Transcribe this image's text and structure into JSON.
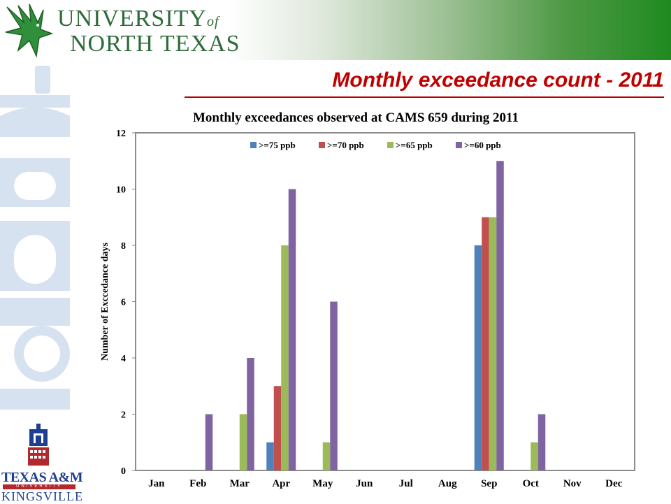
{
  "header": {
    "logo_text_line1": "UNIVERSITY",
    "logo_text_of": "of",
    "logo_text_line2": "NORTH TEXAS",
    "icon": "eagle-icon"
  },
  "slide": {
    "title": "Monthly exceedance count - 2011"
  },
  "chart_data": {
    "type": "bar",
    "title": "Monthly exceedances observed at CAMS 659 during 2011",
    "ylabel": "Number of Exccedance days",
    "xlabel": "",
    "categories": [
      "Jan",
      "Feb",
      "Mar",
      "Apr",
      "May",
      "Jun",
      "Jul",
      "Aug",
      "Sep",
      "Oct",
      "Nov",
      "Dec"
    ],
    "ylim": [
      0,
      12
    ],
    "yticks": [
      0,
      2,
      4,
      6,
      8,
      10,
      12
    ],
    "legend_position": "top-center",
    "grid": false,
    "series": [
      {
        "name": ">=75 ppb",
        "color": "#4f81bd",
        "values": [
          0,
          0,
          0,
          1,
          0,
          0,
          0,
          0,
          8,
          0,
          0,
          0
        ]
      },
      {
        "name": ">=70 ppb",
        "color": "#c0504d",
        "values": [
          0,
          0,
          0,
          3,
          0,
          0,
          0,
          0,
          9,
          0,
          0,
          0
        ]
      },
      {
        "name": ">=65 ppb",
        "color": "#9bbb59",
        "values": [
          0,
          0,
          2,
          8,
          1,
          0,
          0,
          0,
          9,
          1,
          0,
          0
        ]
      },
      {
        "name": ">=60 ppb",
        "color": "#8064a2",
        "values": [
          0,
          2,
          4,
          10,
          6,
          0,
          0,
          0,
          11,
          2,
          0,
          0
        ]
      }
    ]
  },
  "footer_logo": {
    "name": "TEXAS A&M",
    "university": "UNIVERSITY",
    "city": "KINGSVILLE",
    "icon": "tower-icon"
  }
}
